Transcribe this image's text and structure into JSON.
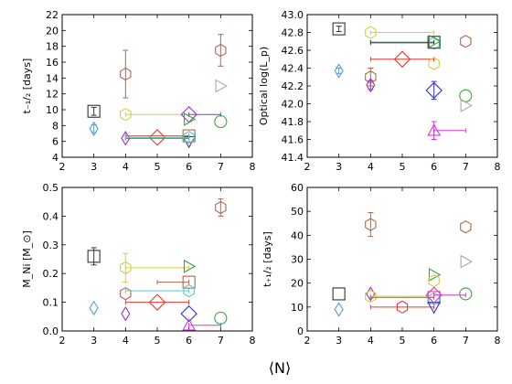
{
  "figure": {
    "xlabel": "⟨N⟩"
  },
  "chart_data": [
    {
      "type": "scatter",
      "ylabel": "t₋₁/₂ [days]",
      "xlim": [
        2,
        8
      ],
      "ylim": [
        4,
        22
      ],
      "xticks": [
        2,
        3,
        4,
        5,
        6,
        7,
        8
      ],
      "yticks": [
        4,
        6,
        8,
        10,
        12,
        14,
        16,
        18,
        20,
        22
      ],
      "ytick_labels": [
        "4",
        "6",
        "8",
        "10",
        "12",
        "14",
        "16",
        "18",
        "20",
        "22"
      ],
      "grid": false,
      "points": [
        {
          "x": 3,
          "y": 9.8,
          "yerr": 0.5,
          "marker": "square",
          "color": "#333333"
        },
        {
          "x": 3,
          "y": 7.6,
          "yerr": 0.5,
          "marker": "thin-diamond",
          "color": "#5a9bd4"
        },
        {
          "x": 4,
          "y": 14.5,
          "yerr": 3.0,
          "marker": "hexagon",
          "color": "#b5654a"
        },
        {
          "x": 4,
          "y": 9.4,
          "x_right": 6,
          "marker": "hexagon",
          "color": "#d4cf3a"
        },
        {
          "x": 4,
          "y": 6.4,
          "x_right": 6,
          "marker": "thin-diamond",
          "color": "#9933cc"
        },
        {
          "x": 5,
          "y": 6.5,
          "x_left": 4,
          "x_right": 6,
          "marker": "diamond",
          "color": "#e8372d"
        },
        {
          "x": 6,
          "y": 6.7,
          "x_left": 4,
          "marker": "square",
          "color": "#b5654a"
        },
        {
          "x": 6,
          "y": 9.4,
          "x_right": 7,
          "marker": "diamond",
          "color": "#9933cc"
        },
        {
          "x": 6,
          "y": 8.8,
          "marker": "triangle-right",
          "color": "#33aa33"
        },
        {
          "x": 6,
          "y": 6.0,
          "marker": "triangle-down",
          "color": "#3333cc"
        },
        {
          "x": 6,
          "y": 6.5,
          "x_left": 4,
          "marker": "hexagon",
          "color": "#55cccc"
        },
        {
          "x": 7,
          "y": 17.5,
          "yerr": 2.0,
          "marker": "hexagon",
          "color": "#b5654a"
        },
        {
          "x": 7,
          "y": 13.0,
          "marker": "triangle-right",
          "color": "#aaaaaa"
        },
        {
          "x": 7,
          "y": 8.5,
          "marker": "circle",
          "color": "#33aa33"
        }
      ]
    },
    {
      "type": "scatter",
      "ylabel": "Optical log(L_p)",
      "xlim": [
        2,
        8
      ],
      "ylim": [
        41.4,
        43.0
      ],
      "xticks": [
        2,
        3,
        4,
        5,
        6,
        7,
        8
      ],
      "yticks": [
        41.4,
        41.6,
        41.8,
        42.0,
        42.2,
        42.4,
        42.6,
        42.8,
        43.0
      ],
      "ytick_labels": [
        "41.4",
        "41.6",
        "41.8",
        "42.0",
        "42.2",
        "42.4",
        "42.6",
        "42.8",
        "43.0"
      ],
      "grid": false,
      "points": [
        {
          "x": 3,
          "y": 42.84,
          "yerr": 0.03,
          "marker": "square",
          "color": "#333333"
        },
        {
          "x": 3,
          "y": 42.37,
          "yerr": 0.03,
          "marker": "thin-diamond",
          "color": "#5a9bd4"
        },
        {
          "x": 4,
          "y": 42.8,
          "x_right": 6,
          "marker": "hexagon",
          "color": "#d4cf3a"
        },
        {
          "x": 4,
          "y": 42.3,
          "yerr": 0.1,
          "marker": "hexagon",
          "color": "#b5654a"
        },
        {
          "x": 4,
          "y": 42.21,
          "yerr": 0.05,
          "marker": "thin-diamond",
          "color": "#9933cc"
        },
        {
          "x": 5,
          "y": 42.5,
          "x_left": 4,
          "x_right": 6,
          "marker": "diamond",
          "color": "#e8372d"
        },
        {
          "x": 6,
          "y": 42.68,
          "x_left": 4,
          "marker": "hexagon",
          "color": "#55cccc"
        },
        {
          "x": 6,
          "y": 42.69,
          "x_left": 4,
          "marker": "square",
          "color": "#333333"
        },
        {
          "x": 6,
          "y": 42.7,
          "marker": "triangle-right",
          "color": "#33aa33"
        },
        {
          "x": 6,
          "y": 42.45,
          "marker": "hexagon",
          "color": "#d4cf3a"
        },
        {
          "x": 6,
          "y": 42.15,
          "yerr": 0.1,
          "marker": "diamond",
          "color": "#3333cc"
        },
        {
          "x": 6,
          "y": 41.7,
          "yerr": 0.1,
          "x_right": 7,
          "marker": "triangle-up",
          "color": "#dd33dd"
        },
        {
          "x": 7,
          "y": 42.7,
          "marker": "hexagon",
          "color": "#b5654a"
        },
        {
          "x": 7,
          "y": 42.09,
          "marker": "circle",
          "color": "#33aa33"
        },
        {
          "x": 7,
          "y": 41.98,
          "marker": "triangle-right",
          "color": "#aaaaaa"
        }
      ]
    },
    {
      "type": "scatter",
      "ylabel": "M_Ni [M_⊙]",
      "xlim": [
        2,
        8
      ],
      "ylim": [
        0.0,
        0.5
      ],
      "xticks": [
        2,
        3,
        4,
        5,
        6,
        7,
        8
      ],
      "yticks": [
        0.0,
        0.1,
        0.2,
        0.3,
        0.4,
        0.5
      ],
      "ytick_labels": [
        "0.0",
        "0.1",
        "0.2",
        "0.3",
        "0.4",
        "0.5"
      ],
      "grid": false,
      "points": [
        {
          "x": 3,
          "y": 0.26,
          "yerr": 0.03,
          "marker": "square",
          "color": "#333333"
        },
        {
          "x": 3,
          "y": 0.08,
          "marker": "thin-diamond",
          "color": "#5a9bd4"
        },
        {
          "x": 4,
          "y": 0.22,
          "yerr": 0.05,
          "x_right": 6,
          "marker": "hexagon",
          "color": "#d4cf3a"
        },
        {
          "x": 4,
          "y": 0.13,
          "marker": "hexagon",
          "color": "#b5654a"
        },
        {
          "x": 4,
          "y": 0.06,
          "marker": "thin-diamond",
          "color": "#9933cc"
        },
        {
          "x": 5,
          "y": 0.1,
          "x_left": 4,
          "x_right": 6,
          "marker": "diamond",
          "color": "#e8372d"
        },
        {
          "x": 6,
          "y": 0.225,
          "marker": "triangle-right",
          "color": "#33aa33"
        },
        {
          "x": 6,
          "y": 0.17,
          "x_left": 5,
          "marker": "square",
          "color": "#b5654a"
        },
        {
          "x": 6,
          "y": 0.14,
          "x_left": 4,
          "marker": "hexagon",
          "color": "#55cccc"
        },
        {
          "x": 6,
          "y": 0.06,
          "marker": "diamond",
          "color": "#3333cc"
        },
        {
          "x": 6,
          "y": 0.02,
          "x_right": 7,
          "marker": "triangle-up",
          "color": "#dd33dd"
        },
        {
          "x": 7,
          "y": 0.43,
          "yerr": 0.03,
          "marker": "hexagon",
          "color": "#b5654a"
        },
        {
          "x": 7,
          "y": 0.045,
          "marker": "circle",
          "color": "#33aa33"
        }
      ]
    },
    {
      "type": "scatter",
      "ylabel": "t₊₁/₂ [days]",
      "xlim": [
        2,
        8
      ],
      "ylim": [
        0,
        60
      ],
      "xticks": [
        2,
        3,
        4,
        5,
        6,
        7,
        8
      ],
      "yticks": [
        0,
        10,
        20,
        30,
        40,
        50,
        60
      ],
      "ytick_labels": [
        "0",
        "10",
        "20",
        "30",
        "40",
        "50",
        "60"
      ],
      "grid": false,
      "points": [
        {
          "x": 3,
          "y": 15.5,
          "marker": "square",
          "color": "#333333"
        },
        {
          "x": 3,
          "y": 9.0,
          "marker": "thin-diamond",
          "color": "#5a9bd4"
        },
        {
          "x": 4,
          "y": 44.5,
          "yerr": 5.0,
          "marker": "hexagon",
          "color": "#b5654a"
        },
        {
          "x": 4,
          "y": 15.5,
          "marker": "thin-diamond",
          "color": "#9933cc"
        },
        {
          "x": 4,
          "y": 14.5,
          "x_right": 6,
          "marker": "hexagon",
          "color": "#d4cf3a"
        },
        {
          "x": 5,
          "y": 10.0,
          "x_left": 4,
          "x_right": 6,
          "marker": "hexagon",
          "color": "#e8372d"
        },
        {
          "x": 6,
          "y": 23.5,
          "marker": "triangle-right",
          "color": "#33aa33"
        },
        {
          "x": 6,
          "y": 21.0,
          "marker": "hexagon",
          "color": "#d4cf3a"
        },
        {
          "x": 6,
          "y": 14.0,
          "x_left": 4,
          "marker": "square",
          "color": "#b5654a"
        },
        {
          "x": 6,
          "y": 13.5,
          "marker": "hexagon",
          "color": "#55cccc"
        },
        {
          "x": 6,
          "y": 10.0,
          "marker": "triangle-down",
          "color": "#3333cc"
        },
        {
          "x": 6,
          "y": 15.0,
          "x_right": 7,
          "marker": "diamond",
          "color": "#dd33dd"
        },
        {
          "x": 7,
          "y": 43.5,
          "marker": "hexagon",
          "color": "#b5654a"
        },
        {
          "x": 7,
          "y": 29.0,
          "marker": "triangle-right",
          "color": "#aaaaaa"
        },
        {
          "x": 7,
          "y": 15.5,
          "marker": "circle",
          "color": "#33aa33"
        }
      ]
    }
  ]
}
